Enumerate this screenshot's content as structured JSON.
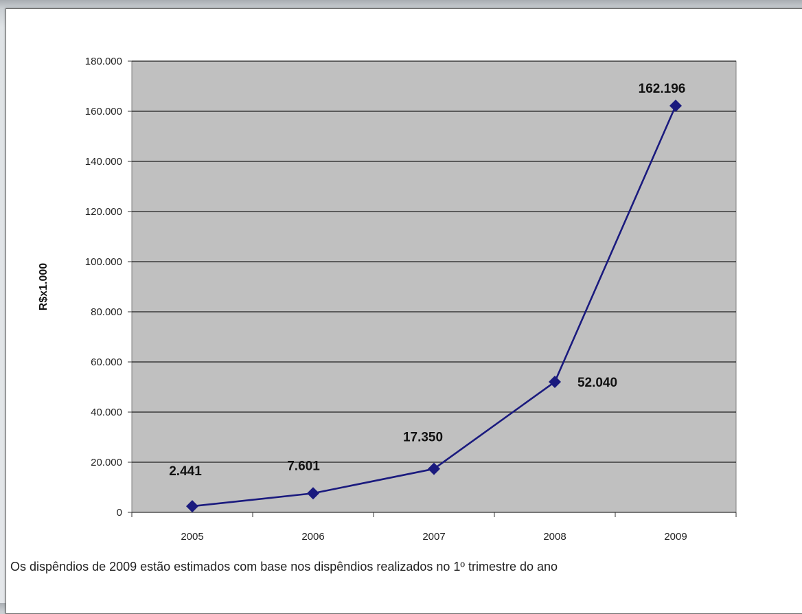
{
  "chart_data": {
    "type": "line",
    "title": "",
    "xlabel": "",
    "ylabel": "R$x1.000",
    "categories": [
      "2005",
      "2006",
      "2007",
      "2008",
      "2009"
    ],
    "series": [
      {
        "values": [
          2441,
          7601,
          17350,
          52040,
          162196
        ],
        "data_labels": [
          "2.441",
          "7.601",
          "17.350",
          "52.040",
          "162.196"
        ],
        "color": "#1a1a7e"
      }
    ],
    "ylim": [
      0,
      180000
    ],
    "yticks": [
      0,
      20000,
      40000,
      60000,
      80000,
      100000,
      120000,
      140000,
      160000,
      180000
    ],
    "ytick_labels": [
      "0",
      "20.000",
      "40.000",
      "60.000",
      "80.000",
      "100.000",
      "120.000",
      "140.000",
      "160.000",
      "180.000"
    ],
    "grid": true,
    "plot_background": "#c0c0c0",
    "legend": "none"
  },
  "footnote": "Os dispêndios de 2009 estão estimados com base nos dispêndios realizados no 1º trimestre do ano"
}
